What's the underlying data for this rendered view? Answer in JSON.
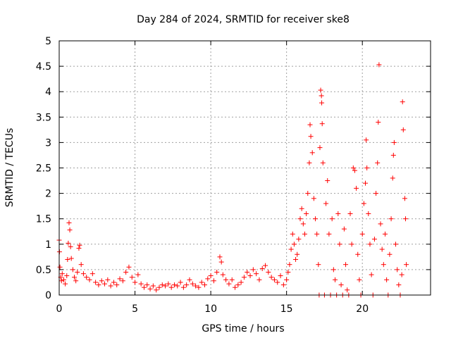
{
  "chart_data": {
    "type": "scatter",
    "title": "Day 284 of 2024, SRMTID for receiver ske8",
    "xlabel": "GPS time / hours",
    "ylabel": "SRMTID / TECUs",
    "xlim": [
      0,
      24.5
    ],
    "ylim": [
      0,
      5
    ],
    "x_ticks": [
      0,
      5,
      10,
      15,
      20
    ],
    "x_tick_labels": [
      "0",
      "5",
      "10",
      "15",
      "20"
    ],
    "y_ticks": [
      0,
      0.5,
      1,
      1.5,
      2,
      2.5,
      3,
      3.5,
      4,
      4.5,
      5
    ],
    "y_tick_labels": [
      "0",
      "0.5",
      "1",
      "1.5",
      "2",
      "2.5",
      "3",
      "3.5",
      "4",
      "4.5",
      "5"
    ],
    "grid": true,
    "marker": "+",
    "series": [
      {
        "name": "SRMTID",
        "color": "#ff0000",
        "points": [
          [
            0.0,
            1.08
          ],
          [
            0.02,
            0.85
          ],
          [
            0.05,
            0.55
          ],
          [
            0.1,
            0.35
          ],
          [
            0.15,
            0.28
          ],
          [
            0.2,
            0.42
          ],
          [
            0.3,
            0.3
          ],
          [
            0.4,
            0.22
          ],
          [
            0.5,
            0.38
          ],
          [
            0.55,
            0.7
          ],
          [
            0.6,
            1.02
          ],
          [
            0.65,
            1.42
          ],
          [
            0.7,
            1.28
          ],
          [
            0.75,
            0.95
          ],
          [
            0.8,
            0.72
          ],
          [
            0.9,
            0.5
          ],
          [
            1.0,
            0.35
          ],
          [
            1.1,
            0.28
          ],
          [
            1.2,
            0.45
          ],
          [
            1.3,
            0.92
          ],
          [
            1.35,
            0.98
          ],
          [
            1.45,
            0.6
          ],
          [
            1.6,
            0.42
          ],
          [
            1.8,
            0.35
          ],
          [
            2.0,
            0.3
          ],
          [
            2.2,
            0.42
          ],
          [
            2.4,
            0.25
          ],
          [
            2.6,
            0.2
          ],
          [
            2.8,
            0.28
          ],
          [
            3.0,
            0.22
          ],
          [
            3.2,
            0.3
          ],
          [
            3.4,
            0.18
          ],
          [
            3.6,
            0.25
          ],
          [
            3.8,
            0.2
          ],
          [
            4.0,
            0.32
          ],
          [
            4.2,
            0.28
          ],
          [
            4.4,
            0.45
          ],
          [
            4.6,
            0.55
          ],
          [
            4.8,
            0.35
          ],
          [
            5.0,
            0.25
          ],
          [
            5.2,
            0.4
          ],
          [
            5.4,
            0.22
          ],
          [
            5.6,
            0.15
          ],
          [
            5.8,
            0.2
          ],
          [
            6.0,
            0.12
          ],
          [
            6.2,
            0.18
          ],
          [
            6.4,
            0.1
          ],
          [
            6.6,
            0.15
          ],
          [
            6.8,
            0.2
          ],
          [
            7.0,
            0.18
          ],
          [
            7.2,
            0.22
          ],
          [
            7.4,
            0.15
          ],
          [
            7.6,
            0.2
          ],
          [
            7.8,
            0.18
          ],
          [
            8.0,
            0.25
          ],
          [
            8.2,
            0.15
          ],
          [
            8.4,
            0.2
          ],
          [
            8.6,
            0.3
          ],
          [
            8.8,
            0.22
          ],
          [
            9.0,
            0.18
          ],
          [
            9.2,
            0.15
          ],
          [
            9.4,
            0.25
          ],
          [
            9.6,
            0.2
          ],
          [
            9.8,
            0.32
          ],
          [
            10.0,
            0.38
          ],
          [
            10.2,
            0.28
          ],
          [
            10.4,
            0.45
          ],
          [
            10.6,
            0.75
          ],
          [
            10.7,
            0.65
          ],
          [
            10.8,
            0.4
          ],
          [
            11.0,
            0.3
          ],
          [
            11.2,
            0.22
          ],
          [
            11.4,
            0.3
          ],
          [
            11.6,
            0.15
          ],
          [
            11.8,
            0.2
          ],
          [
            12.0,
            0.25
          ],
          [
            12.2,
            0.35
          ],
          [
            12.4,
            0.45
          ],
          [
            12.6,
            0.38
          ],
          [
            12.8,
            0.5
          ],
          [
            13.0,
            0.42
          ],
          [
            13.2,
            0.3
          ],
          [
            13.4,
            0.52
          ],
          [
            13.6,
            0.58
          ],
          [
            13.8,
            0.45
          ],
          [
            14.0,
            0.35
          ],
          [
            14.2,
            0.3
          ],
          [
            14.4,
            0.25
          ],
          [
            14.6,
            0.38
          ],
          [
            14.8,
            0.2
          ],
          [
            15.0,
            0.3
          ],
          [
            15.1,
            0.45
          ],
          [
            15.2,
            0.6
          ],
          [
            15.3,
            0.9
          ],
          [
            15.4,
            1.2
          ],
          [
            15.5,
            1.0
          ],
          [
            15.6,
            0.7
          ],
          [
            15.7,
            0.8
          ],
          [
            15.8,
            1.1
          ],
          [
            15.9,
            1.5
          ],
          [
            16.0,
            1.7
          ],
          [
            16.1,
            1.4
          ],
          [
            16.2,
            1.2
          ],
          [
            16.3,
            1.6
          ],
          [
            16.4,
            2.0
          ],
          [
            16.5,
            2.6
          ],
          [
            16.55,
            3.35
          ],
          [
            16.6,
            3.12
          ],
          [
            16.7,
            2.8
          ],
          [
            16.8,
            1.9
          ],
          [
            16.9,
            1.5
          ],
          [
            17.0,
            1.2
          ],
          [
            17.1,
            0.6
          ],
          [
            17.15,
            0.0
          ],
          [
            17.2,
            2.9
          ],
          [
            17.25,
            4.03
          ],
          [
            17.3,
            3.92
          ],
          [
            17.32,
            3.78
          ],
          [
            17.35,
            3.37
          ],
          [
            17.4,
            2.6
          ],
          [
            17.5,
            0.0
          ],
          [
            17.6,
            1.8
          ],
          [
            17.7,
            2.25
          ],
          [
            17.8,
            1.2
          ],
          [
            17.9,
            0.0
          ],
          [
            18.0,
            1.5
          ],
          [
            18.1,
            0.5
          ],
          [
            18.2,
            0.3
          ],
          [
            18.3,
            0.0
          ],
          [
            18.4,
            1.6
          ],
          [
            18.5,
            1.0
          ],
          [
            18.6,
            0.2
          ],
          [
            18.7,
            0.0
          ],
          [
            18.8,
            1.3
          ],
          [
            18.9,
            0.6
          ],
          [
            19.0,
            0.1
          ],
          [
            19.1,
            0.0
          ],
          [
            19.2,
            1.6
          ],
          [
            19.3,
            1.0
          ],
          [
            19.4,
            2.5
          ],
          [
            19.5,
            2.45
          ],
          [
            19.6,
            2.1
          ],
          [
            19.7,
            0.8
          ],
          [
            19.8,
            0.3
          ],
          [
            19.9,
            0.0
          ],
          [
            20.0,
            1.2
          ],
          [
            20.1,
            1.8
          ],
          [
            20.2,
            2.2
          ],
          [
            20.25,
            3.05
          ],
          [
            20.3,
            2.5
          ],
          [
            20.4,
            1.6
          ],
          [
            20.5,
            1.0
          ],
          [
            20.6,
            0.4
          ],
          [
            20.7,
            0.0
          ],
          [
            20.8,
            1.1
          ],
          [
            20.9,
            2.0
          ],
          [
            21.0,
            2.6
          ],
          [
            21.05,
            3.4
          ],
          [
            21.1,
            4.53
          ],
          [
            21.2,
            1.4
          ],
          [
            21.3,
            0.9
          ],
          [
            21.4,
            0.6
          ],
          [
            21.5,
            1.2
          ],
          [
            21.6,
            0.3
          ],
          [
            21.7,
            0.0
          ],
          [
            21.8,
            0.8
          ],
          [
            21.9,
            1.5
          ],
          [
            22.0,
            2.3
          ],
          [
            22.05,
            2.75
          ],
          [
            22.1,
            3.0
          ],
          [
            22.2,
            1.0
          ],
          [
            22.3,
            0.5
          ],
          [
            22.4,
            0.2
          ],
          [
            22.5,
            0.0
          ],
          [
            22.6,
            0.4
          ],
          [
            22.65,
            3.8
          ],
          [
            22.7,
            3.25
          ],
          [
            22.8,
            1.9
          ],
          [
            22.85,
            1.5
          ],
          [
            22.9,
            0.6
          ]
        ]
      }
    ]
  }
}
